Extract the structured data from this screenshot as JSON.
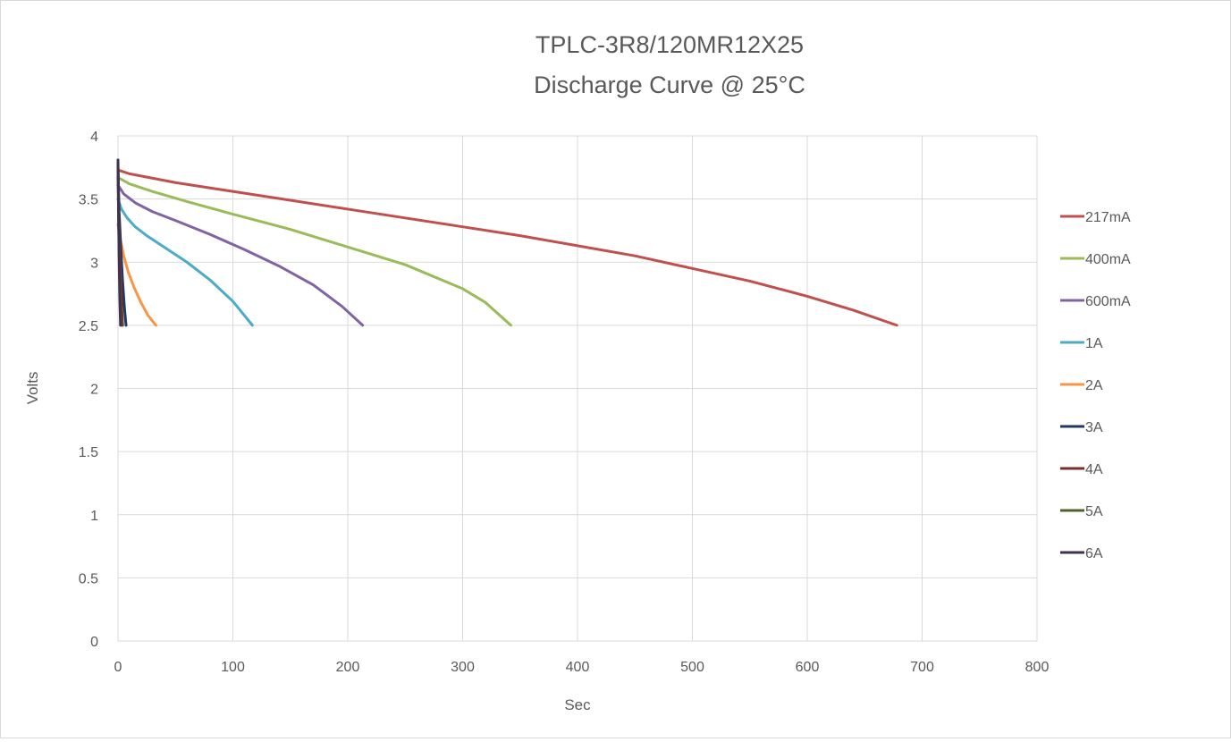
{
  "chart_data": {
    "type": "line",
    "title": "TPLC-3R8/120MR12X25",
    "subtitle": "Discharge Curve @ 25°C",
    "xlabel": "Sec",
    "ylabel": "Volts",
    "xlim": [
      0,
      800
    ],
    "ylim": [
      0,
      4
    ],
    "x_ticks": [
      "0",
      "100",
      "200",
      "300",
      "400",
      "500",
      "600",
      "700",
      "800"
    ],
    "y_ticks": [
      "0",
      "0.5",
      "1",
      "1.5",
      "2",
      "2.5",
      "3",
      "3.5",
      "4"
    ],
    "grid": true,
    "legend_position": "right",
    "series": [
      {
        "name": "217mA",
        "color": "#c0504d",
        "points": [
          [
            0,
            3.73
          ],
          [
            10,
            3.7
          ],
          [
            50,
            3.63
          ],
          [
            100,
            3.56
          ],
          [
            150,
            3.49
          ],
          [
            200,
            3.42
          ],
          [
            250,
            3.35
          ],
          [
            300,
            3.28
          ],
          [
            350,
            3.21
          ],
          [
            400,
            3.13
          ],
          [
            450,
            3.05
          ],
          [
            500,
            2.95
          ],
          [
            550,
            2.85
          ],
          [
            600,
            2.73
          ],
          [
            640,
            2.62
          ],
          [
            678,
            2.5
          ]
        ]
      },
      {
        "name": "400mA",
        "color": "#9bbb59",
        "points": [
          [
            0,
            3.67
          ],
          [
            10,
            3.62
          ],
          [
            30,
            3.56
          ],
          [
            60,
            3.48
          ],
          [
            100,
            3.38
          ],
          [
            150,
            3.26
          ],
          [
            200,
            3.12
          ],
          [
            250,
            2.98
          ],
          [
            300,
            2.79
          ],
          [
            320,
            2.68
          ],
          [
            342,
            2.5
          ]
        ]
      },
      {
        "name": "600mA",
        "color": "#8064a2",
        "points": [
          [
            0,
            3.61
          ],
          [
            5,
            3.54
          ],
          [
            15,
            3.47
          ],
          [
            30,
            3.4
          ],
          [
            50,
            3.33
          ],
          [
            80,
            3.22
          ],
          [
            110,
            3.1
          ],
          [
            140,
            2.97
          ],
          [
            170,
            2.82
          ],
          [
            195,
            2.65
          ],
          [
            213,
            2.5
          ]
        ]
      },
      {
        "name": "1A",
        "color": "#4bacc6",
        "points": [
          [
            0,
            3.5
          ],
          [
            3,
            3.42
          ],
          [
            8,
            3.35
          ],
          [
            15,
            3.28
          ],
          [
            25,
            3.21
          ],
          [
            40,
            3.12
          ],
          [
            60,
            3.0
          ],
          [
            80,
            2.86
          ],
          [
            100,
            2.69
          ],
          [
            117,
            2.5
          ]
        ]
      },
      {
        "name": "2A",
        "color": "#f79646",
        "points": [
          [
            0,
            3.3
          ],
          [
            2,
            3.18
          ],
          [
            5,
            3.05
          ],
          [
            9,
            2.92
          ],
          [
            14,
            2.8
          ],
          [
            20,
            2.68
          ],
          [
            26,
            2.58
          ],
          [
            33,
            2.5
          ]
        ]
      },
      {
        "name": "3A",
        "color": "#1f3864",
        "points": [
          [
            0,
            3.75
          ],
          [
            1,
            3.4
          ],
          [
            2.5,
            3.1
          ],
          [
            4,
            2.85
          ],
          [
            5.5,
            2.65
          ],
          [
            7,
            2.5
          ]
        ]
      },
      {
        "name": "4A",
        "color": "#7b2c2c",
        "points": [
          [
            0,
            3.75
          ],
          [
            0.8,
            3.3
          ],
          [
            1.8,
            3.0
          ],
          [
            3,
            2.7
          ],
          [
            4,
            2.5
          ]
        ]
      },
      {
        "name": "5A",
        "color": "#4f6228",
        "points": [
          [
            0,
            3.78
          ],
          [
            0.6,
            3.3
          ],
          [
            1.3,
            2.95
          ],
          [
            2.2,
            2.65
          ],
          [
            3,
            2.5
          ]
        ]
      },
      {
        "name": "6A",
        "color": "#403152",
        "points": [
          [
            0,
            3.81
          ],
          [
            0.5,
            3.35
          ],
          [
            1,
            3.0
          ],
          [
            1.6,
            2.7
          ],
          [
            2.2,
            2.5
          ]
        ]
      }
    ]
  }
}
